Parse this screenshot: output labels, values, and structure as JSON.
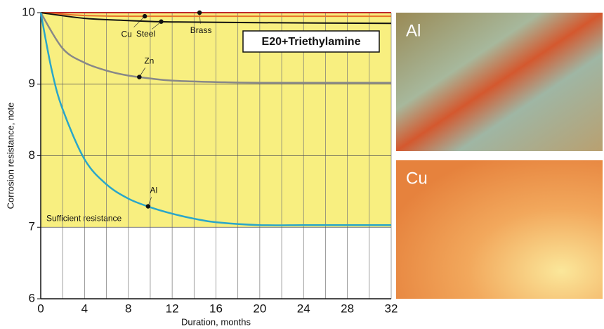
{
  "chart_data": {
    "type": "line",
    "title": "E20+Triethylamine",
    "xlabel": "Duration, months",
    "ylabel": "Corrosion resistance, note",
    "xlim": [
      0,
      32
    ],
    "ylim": [
      6,
      10
    ],
    "xticks": [
      0,
      4,
      8,
      12,
      16,
      20,
      24,
      28,
      32
    ],
    "xminorticks": [
      2,
      6,
      10,
      14,
      18,
      22,
      26,
      30
    ],
    "yticks": [
      6,
      7,
      8,
      9,
      10
    ],
    "grid": true,
    "band": {
      "label": "Sufficient resistance",
      "ylim": [
        7,
        10
      ],
      "color": "#f8ef80"
    },
    "series": [
      {
        "name": "Brass",
        "color": "#c0282d",
        "x": [
          0,
          8,
          16,
          24,
          32
        ],
        "values": [
          10,
          10,
          10,
          10,
          10
        ]
      },
      {
        "name": "Cu",
        "color": "#e8722a",
        "x": [
          0,
          4,
          8,
          16,
          24,
          32
        ],
        "values": [
          10,
          9.96,
          9.95,
          9.95,
          9.95,
          9.95
        ]
      },
      {
        "name": "Steel",
        "color": "#111111",
        "x": [
          0,
          4,
          8,
          12,
          20,
          32
        ],
        "values": [
          10,
          9.92,
          9.89,
          9.87,
          9.86,
          9.85
        ]
      },
      {
        "name": "Zn",
        "color": "#888888",
        "x": [
          0,
          2,
          4,
          6,
          8,
          10,
          12,
          16,
          20,
          32
        ],
        "values": [
          10,
          9.5,
          9.3,
          9.19,
          9.12,
          9.08,
          9.05,
          9.03,
          9.02,
          9.02
        ]
      },
      {
        "name": "Al",
        "color": "#2aa6c9",
        "x": [
          0,
          1,
          2,
          4,
          6,
          8,
          10,
          12,
          14,
          16,
          20,
          24,
          28,
          32
        ],
        "values": [
          10,
          9.2,
          8.65,
          7.95,
          7.6,
          7.4,
          7.28,
          7.19,
          7.12,
          7.07,
          7.03,
          7.03,
          7.03,
          7.03
        ]
      }
    ]
  },
  "photos": [
    {
      "label": "Al"
    },
    {
      "label": "Cu"
    }
  ]
}
